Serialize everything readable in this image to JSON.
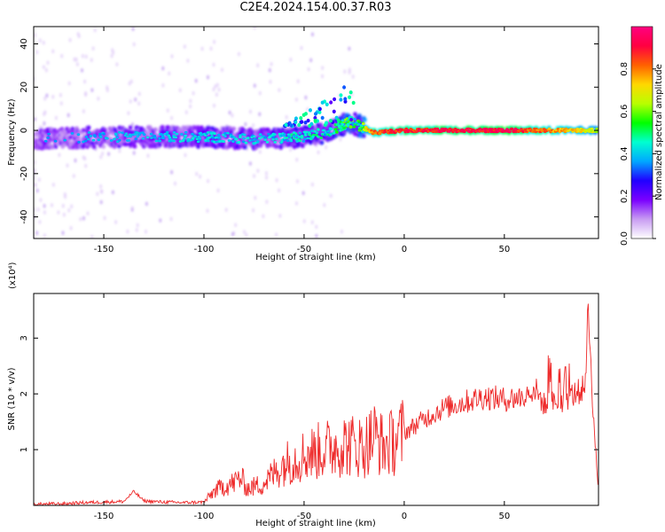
{
  "figure": {
    "title": "C2E4.2024.154.00.37.R03"
  },
  "chart_data": [
    {
      "type": "heatmap",
      "title": "C2E4.2024.154.00.37.R03",
      "xlabel": "Height of straight line (km)",
      "ylabel": "Frequency (Hz)",
      "xlim": [
        -185,
        97
      ],
      "ylim": [
        -50,
        48
      ],
      "xticks": [
        -150,
        -100,
        -50,
        0,
        50
      ],
      "yticks": [
        -40,
        -20,
        0,
        20,
        40
      ],
      "colorbar": {
        "label": "Normalized spectral amplitude",
        "range": [
          0.0,
          1.0
        ],
        "ticks": [
          0.0,
          0.2,
          0.4,
          0.6,
          0.8
        ],
        "colormap": [
          "#ffffff",
          "#c89cf2",
          "#7a00ff",
          "#2000ff",
          "#00a8ff",
          "#00ffd0",
          "#00ff00",
          "#b8ff00",
          "#ffd800",
          "#ff6000",
          "#ff0040",
          "#ff0080"
        ]
      },
      "ridge": {
        "description_points_x": [
          -185,
          -150,
          -100,
          -75,
          -50,
          -35,
          -28,
          -22,
          -15,
          0,
          50,
          97
        ],
        "center_freq": [
          -4,
          -3,
          -3,
          -4,
          -3,
          0,
          4,
          2,
          -1,
          0,
          0,
          0
        ],
        "peak_amplitude": [
          0.35,
          0.4,
          0.45,
          0.45,
          0.5,
          0.55,
          0.65,
          0.6,
          0.9,
          0.95,
          1.0,
          0.7
        ]
      }
    },
    {
      "type": "line",
      "xlabel": "Height of straight line (km)",
      "ylabel": "SNR (10 * v/v)",
      "y_multiplier": "(x10⁴)",
      "xlim": [
        -185,
        97
      ],
      "ylim": [
        0,
        3.8
      ],
      "xticks": [
        -150,
        -100,
        -50,
        0,
        50
      ],
      "yticks": [
        1,
        2,
        3
      ],
      "color": "#ee2a2a",
      "series": [
        {
          "x": [
            -185,
            -170,
            -160,
            -150,
            -140,
            -135,
            -130,
            -120,
            -110,
            -100,
            -95,
            -90,
            -85,
            -82,
            -78,
            -70,
            -60,
            -50,
            -40,
            -30,
            -20,
            -15,
            -10,
            -5,
            0,
            10,
            20,
            30,
            40,
            50,
            60,
            65,
            70,
            80,
            85,
            90,
            92,
            95,
            97
          ],
          "values": [
            0.02,
            0.03,
            0.05,
            0.06,
            0.07,
            0.25,
            0.08,
            0.06,
            0.05,
            0.06,
            0.25,
            0.35,
            0.4,
            0.5,
            0.3,
            0.4,
            0.75,
            0.9,
            1.0,
            1.1,
            1.05,
            1.25,
            1.05,
            1.15,
            1.3,
            1.55,
            1.75,
            1.85,
            1.95,
            1.9,
            1.95,
            2.1,
            1.8,
            1.9,
            2.0,
            2.1,
            3.5,
            1.2,
            0.3
          ]
        }
      ]
    }
  ]
}
